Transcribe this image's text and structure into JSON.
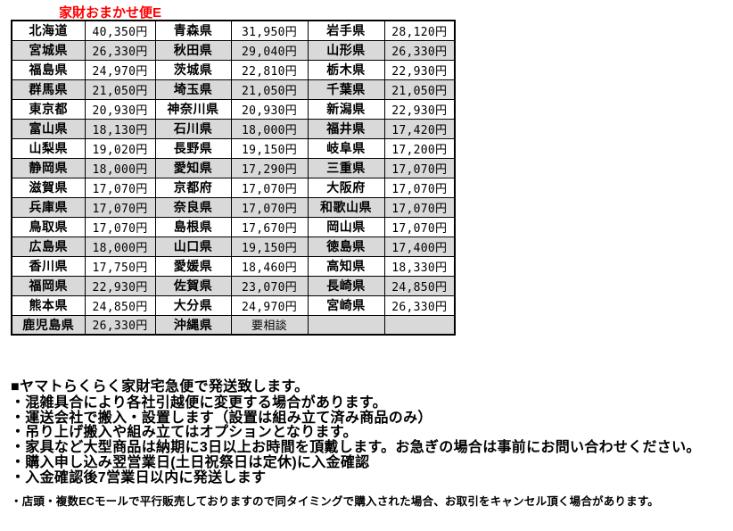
{
  "title": "家財おまかせ便E",
  "colors": {
    "title_red": "#ff0000",
    "row_alt_gray": "#d9d9d9",
    "border_black": "#000000"
  },
  "table": {
    "columns": [
      "prefecture",
      "fee",
      "prefecture",
      "fee",
      "prefecture",
      "fee"
    ],
    "rows": [
      [
        "北海道",
        "40,350円",
        "青森県",
        "31,950円",
        "岩手県",
        "28,120円"
      ],
      [
        "宮城県",
        "26,330円",
        "秋田県",
        "29,040円",
        "山形県",
        "26,330円"
      ],
      [
        "福島県",
        "24,970円",
        "茨城県",
        "22,810円",
        "栃木県",
        "22,930円"
      ],
      [
        "群馬県",
        "21,050円",
        "埼玉県",
        "21,050円",
        "千葉県",
        "21,050円"
      ],
      [
        "東京都",
        "20,930円",
        "神奈川県",
        "20,930円",
        "新潟県",
        "22,930円"
      ],
      [
        "富山県",
        "18,130円",
        "石川県",
        "18,000円",
        "福井県",
        "17,420円"
      ],
      [
        "山梨県",
        "19,020円",
        "長野県",
        "19,150円",
        "岐阜県",
        "17,200円"
      ],
      [
        "静岡県",
        "18,000円",
        "愛知県",
        "17,290円",
        "三重県",
        "17,070円"
      ],
      [
        "滋賀県",
        "17,070円",
        "京都府",
        "17,070円",
        "大阪府",
        "17,070円"
      ],
      [
        "兵庫県",
        "17,070円",
        "奈良県",
        "17,070円",
        "和歌山県",
        "17,070円"
      ],
      [
        "鳥取県",
        "17,070円",
        "島根県",
        "17,670円",
        "岡山県",
        "17,070円"
      ],
      [
        "広島県",
        "18,000円",
        "山口県",
        "19,150円",
        "徳島県",
        "17,400円"
      ],
      [
        "香川県",
        "17,750円",
        "愛媛県",
        "18,460円",
        "高知県",
        "18,330円"
      ],
      [
        "福岡県",
        "22,930円",
        "佐賀県",
        "23,070円",
        "長崎県",
        "24,850円"
      ],
      [
        "熊本県",
        "24,850円",
        "大分県",
        "24,970円",
        "宮崎県",
        "26,330円"
      ],
      [
        "鹿児島県",
        "26,330円",
        "沖縄県",
        "要相談",
        "",
        ""
      ]
    ]
  },
  "notes": {
    "heading": "■ヤマトらくらく家財宅急便で発送致します。",
    "bullets": [
      "・混雑具合により各社引越便に変更する場合があります。",
      "・運送会社で搬入・設置します（設置は組み立て済み商品のみ）",
      "・吊り上げ搬入や組み立てはオプションとなります。",
      "・家具など大型商品は納期に3日以上お時間を頂戴します。お急ぎの場合は事前にお問い合わせください。",
      "・購入申し込み翌営業日(土日祝祭日は定休)に入金確認",
      "・入金確認後7営業日以内に発送します"
    ],
    "footnote": "・店頭・複数ECモールで平行販売しておりますので同タイミングで購入された場合、お取引をキャンセル頂く場合があります。"
  }
}
